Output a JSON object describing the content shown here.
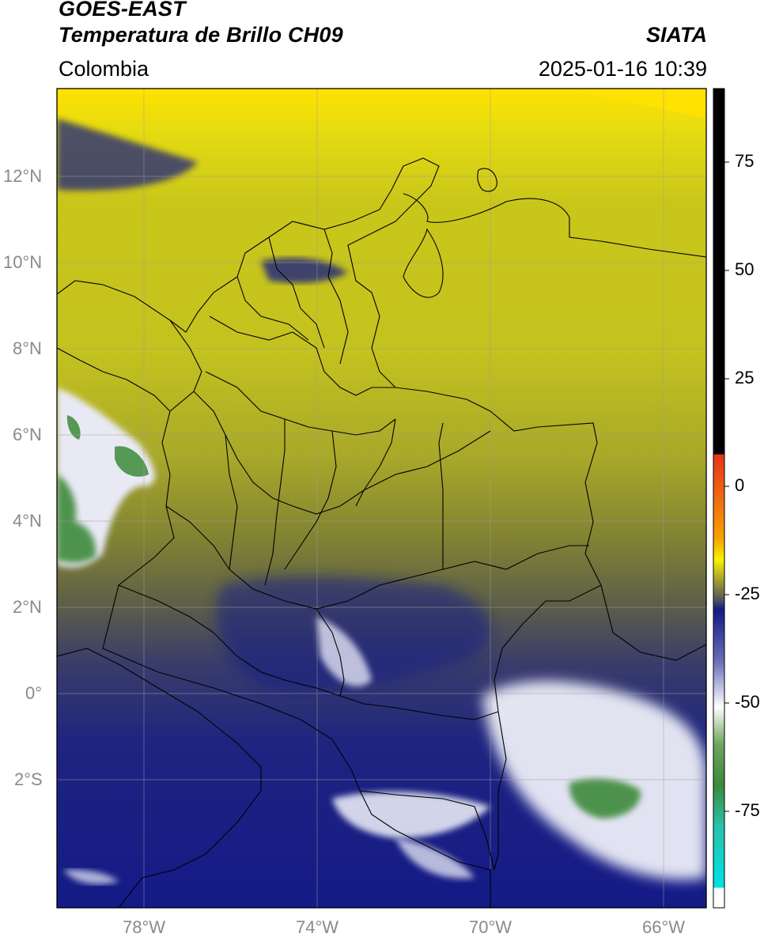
{
  "header": {
    "title_line1": "GOES-EAST",
    "title_line2": "Temperatura de Brillo CH09",
    "brand": "SIATA",
    "region": "Colombia",
    "datetime": "2025-01-16 10:39"
  },
  "axes": {
    "lat_labels": [
      "12°N",
      "10°N",
      "8°N",
      "6°N",
      "4°N",
      "2°N",
      "0°",
      "2°S"
    ],
    "lon_labels": [
      "78°W",
      "74°W",
      "70°W",
      "66°W"
    ]
  },
  "colorbar": {
    "ticks": [
      "75",
      "50",
      "25",
      "0",
      "-25",
      "-50",
      "-75"
    ],
    "colors": {
      "black": "#000000",
      "red": "#e8341b",
      "orange": "#f5a400",
      "yellow": "#f8f200",
      "olive": "#8f8f33",
      "gray": "#4e5060",
      "navy": "#141a86",
      "white": "#ffffff",
      "green": "#3c8a3a",
      "teal": "#28c2aa",
      "cyan": "#00e1e6"
    }
  }
}
